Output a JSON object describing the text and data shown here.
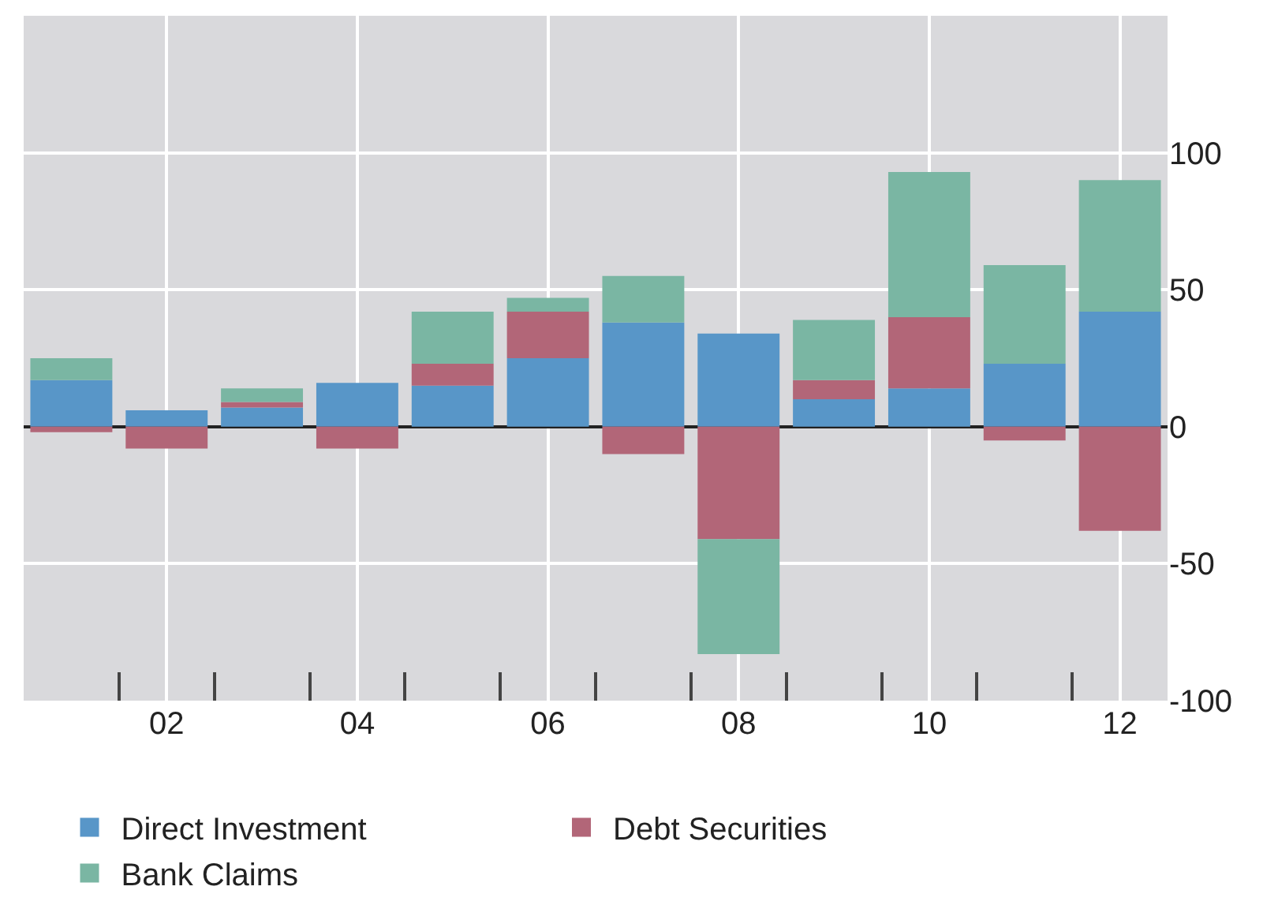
{
  "chart_data": {
    "type": "bar",
    "stacked": true,
    "categories": [
      null,
      "02",
      null,
      "04",
      null,
      "06",
      null,
      "08",
      null,
      "10",
      null,
      "12"
    ],
    "series": [
      {
        "name": "Direct Investment",
        "color": "#5896c8",
        "values": [
          17,
          6,
          7,
          16,
          15,
          25,
          38,
          34,
          10,
          14,
          23,
          42
        ]
      },
      {
        "name": "Debt Securities",
        "color": "#b26678",
        "values": [
          -2,
          -8,
          2,
          -8,
          8,
          17,
          -10,
          -41,
          7,
          26,
          -5,
          -38
        ]
      },
      {
        "name": "Bank Claims",
        "color": "#7ab6a3",
        "values": [
          8,
          null,
          5,
          null,
          19,
          5,
          17,
          -42,
          22,
          53,
          36,
          48
        ]
      }
    ],
    "ylim": [
      -100,
      150
    ],
    "yticks": [
      -100,
      -50,
      0,
      50,
      100,
      {
        "value": 150,
        "label": null
      }
    ],
    "grid": true,
    "legend": "bottom"
  }
}
